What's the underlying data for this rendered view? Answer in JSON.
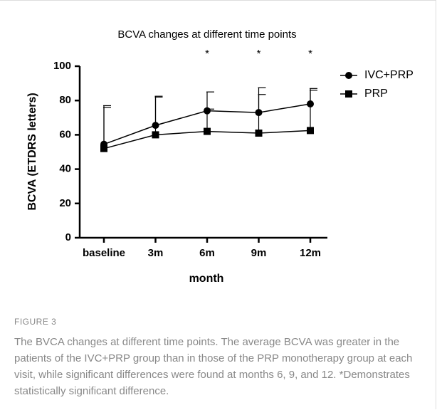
{
  "chart_data": {
    "type": "line",
    "title": "BCVA changes at different time points",
    "x_label": "month",
    "y_label": "BCVA (ETDRS letters)",
    "categories": [
      "baseline",
      "3m",
      "6m",
      "9m",
      "12m"
    ],
    "series": [
      {
        "name": "IVC+PRP",
        "color": "#000000",
        "marker": "circle",
        "values": [
          54.5,
          65.5,
          74,
          73,
          78
        ],
        "errors": [
          22.5,
          17,
          11,
          14.5,
          9
        ]
      },
      {
        "name": "PRP",
        "color": "#000000",
        "marker": "square",
        "values": [
          52,
          60,
          62,
          61,
          62.5
        ],
        "errors": [
          24,
          22,
          13,
          22.5,
          23.5
        ]
      }
    ],
    "significance": [
      null,
      null,
      "*",
      "*",
      "*"
    ],
    "ylim": [
      0,
      100
    ],
    "yticks": [
      0,
      20,
      40,
      60,
      80,
      100
    ],
    "grid": false,
    "legend": "right"
  },
  "figure_label": "FIGURE 3",
  "caption": "The BVCA changes at different time points. The average BCVA was greater in the patients of the IVC+PRP group than in those of the PRP monotherapy group at each visit, while significant differences were found at months 6, 9, and 12. *Demonstrates statistically significant difference."
}
